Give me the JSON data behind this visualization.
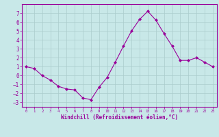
{
  "x": [
    0,
    1,
    2,
    3,
    4,
    5,
    6,
    7,
    8,
    9,
    10,
    11,
    12,
    13,
    14,
    15,
    16,
    17,
    18,
    19,
    20,
    21,
    22,
    23
  ],
  "y": [
    1.0,
    0.8,
    0.0,
    -0.5,
    -1.2,
    -1.5,
    -1.6,
    -2.5,
    -2.7,
    -1.3,
    -0.2,
    1.5,
    3.3,
    5.0,
    6.3,
    7.2,
    6.2,
    4.7,
    3.3,
    1.7,
    1.7,
    2.0,
    1.5,
    1.0
  ],
  "line_color": "#990099",
  "marker": "D",
  "marker_size": 2,
  "bg_color": "#c8e8e8",
  "grid_color": "#aacccc",
  "xlabel": "Windchill (Refroidissement éolien,°C)",
  "xlim": [
    -0.5,
    23.5
  ],
  "ylim": [
    -3.5,
    8.0
  ],
  "yticks": [
    -3,
    -2,
    -1,
    0,
    1,
    2,
    3,
    4,
    5,
    6,
    7
  ],
  "xticks": [
    0,
    1,
    2,
    3,
    4,
    5,
    6,
    7,
    8,
    9,
    10,
    11,
    12,
    13,
    14,
    15,
    16,
    17,
    18,
    19,
    20,
    21,
    22,
    23
  ],
  "tick_color": "#990099",
  "label_color": "#990099",
  "spine_color": "#990099"
}
